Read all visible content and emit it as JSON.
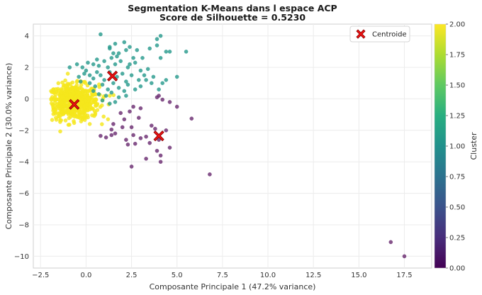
{
  "chart_data": {
    "type": "scatter",
    "title": [
      "Segmentation K-Means dans l espace ACP",
      "Score de Silhouette = 0.5230"
    ],
    "xlabel": "Composante Principale 1 (47.2% variance)",
    "ylabel": "Composante Principale 2 (30.0% variance)",
    "xlim": [
      -2.9,
      19.0
    ],
    "ylim": [
      -10.75,
      4.75
    ],
    "xticks": [
      -2.5,
      0.0,
      2.5,
      5.0,
      7.5,
      10.0,
      12.5,
      15.0,
      17.5
    ],
    "xtick_labels": [
      "−2.5",
      "0.0",
      "2.5",
      "5.0",
      "7.5",
      "10.0",
      "12.5",
      "15.0",
      "17.5"
    ],
    "yticks": [
      4,
      2,
      0,
      -2,
      -4,
      -6,
      -8,
      -10
    ],
    "ytick_labels": [
      "4",
      "2",
      "0",
      "−2",
      "−4",
      "−6",
      "−8",
      "−10"
    ],
    "grid": true,
    "legend": {
      "position": "top-right",
      "entries": [
        "Centroide"
      ]
    },
    "colorbar": {
      "label": "Cluster",
      "range": [
        0.0,
        2.0
      ],
      "ticks": [
        2.0,
        1.75,
        1.5,
        1.25,
        1.0,
        0.75,
        0.5,
        0.25,
        0.0
      ],
      "tick_labels": [
        "2.00",
        "1.75",
        "1.50",
        "1.25",
        "1.00",
        "0.75",
        "0.50",
        "0.25",
        "0.00"
      ]
    },
    "cluster_colors": {
      "0": "#6b2d72",
      "1": "#2a9b8e",
      "2": "#f5e61c"
    },
    "centroid_color": "#ee1111",
    "centroids": [
      {
        "cluster": 0,
        "x": 4.0,
        "y": -2.35
      },
      {
        "cluster": 1,
        "x": 1.45,
        "y": 1.45
      },
      {
        "cluster": 2,
        "x": -0.65,
        "y": -0.35
      }
    ],
    "series": [
      {
        "cluster": 0,
        "points": [
          [
            1.9,
            -0.9
          ],
          [
            2.4,
            -0.8
          ],
          [
            2.6,
            -0.5
          ],
          [
            2.1,
            -1.3
          ],
          [
            2.9,
            -1.2
          ],
          [
            3.0,
            -0.6
          ],
          [
            1.5,
            -1.6
          ],
          [
            2.0,
            -1.8
          ],
          [
            1.4,
            -1.95
          ],
          [
            2.5,
            -1.8
          ],
          [
            1.4,
            -2.3
          ],
          [
            1.1,
            -2.45
          ],
          [
            0.8,
            -2.35
          ],
          [
            1.6,
            -2.2
          ],
          [
            2.6,
            -2.3
          ],
          [
            3.0,
            -2.5
          ],
          [
            3.3,
            -2.4
          ],
          [
            3.6,
            -1.7
          ],
          [
            3.8,
            -1.9
          ],
          [
            4.0,
            -2.6
          ],
          [
            4.4,
            -2.0
          ],
          [
            3.5,
            -2.8
          ],
          [
            2.3,
            -2.9
          ],
          [
            2.2,
            -2.6
          ],
          [
            2.7,
            -2.85
          ],
          [
            3.3,
            -3.8
          ],
          [
            2.5,
            -4.3
          ],
          [
            3.9,
            -3.3
          ],
          [
            4.1,
            -3.6
          ],
          [
            4.1,
            -4.0
          ],
          [
            4.6,
            -3.1
          ],
          [
            3.9,
            0.1
          ],
          [
            4.0,
            0.2
          ],
          [
            4.2,
            -0.05
          ],
          [
            4.6,
            -0.2
          ],
          [
            5.0,
            -0.5
          ],
          [
            5.8,
            -1.25
          ],
          [
            6.8,
            -4.8
          ],
          [
            16.75,
            -9.1
          ],
          [
            17.5,
            -10.0
          ]
        ]
      },
      {
        "cluster": 1,
        "points": [
          [
            0.8,
            4.1
          ],
          [
            1.3,
            3.3
          ],
          [
            1.3,
            3.2
          ],
          [
            1.5,
            2.9
          ],
          [
            1.6,
            3.5
          ],
          [
            2.1,
            3.6
          ],
          [
            2.4,
            3.3
          ],
          [
            2.8,
            3.1
          ],
          [
            2.2,
            3.1
          ],
          [
            1.8,
            2.9
          ],
          [
            2.6,
            2.6
          ],
          [
            3.1,
            2.6
          ],
          [
            3.5,
            3.2
          ],
          [
            3.9,
            3.4
          ],
          [
            4.1,
            4.0
          ],
          [
            4.4,
            3.0
          ],
          [
            4.6,
            3.0
          ],
          [
            5.5,
            3.0
          ],
          [
            3.9,
            3.8
          ],
          [
            4.1,
            2.6
          ],
          [
            -0.9,
            2.0
          ],
          [
            -0.5,
            2.2
          ],
          [
            -0.2,
            2.0
          ],
          [
            0.1,
            2.3
          ],
          [
            0.4,
            2.2
          ],
          [
            0.7,
            2.1
          ],
          [
            1.0,
            2.4
          ],
          [
            1.2,
            2.0
          ],
          [
            1.6,
            2.2
          ],
          [
            1.9,
            2.4
          ],
          [
            2.3,
            2.0
          ],
          [
            2.7,
            2.3
          ],
          [
            3.0,
            1.8
          ],
          [
            3.4,
            1.9
          ],
          [
            3.7,
            1.4
          ],
          [
            -0.4,
            1.4
          ],
          [
            -0.1,
            1.6
          ],
          [
            0.2,
            1.5
          ],
          [
            0.4,
            1.3
          ],
          [
            0.6,
            1.7
          ],
          [
            0.8,
            1.5
          ],
          [
            1.0,
            1.2
          ],
          [
            1.3,
            1.7
          ],
          [
            1.7,
            1.4
          ],
          [
            2.0,
            1.6
          ],
          [
            2.2,
            1.1
          ],
          [
            2.5,
            1.5
          ],
          [
            2.9,
            1.2
          ],
          [
            3.2,
            1.5
          ],
          [
            3.6,
            1.0
          ],
          [
            4.2,
            1.0
          ],
          [
            4.4,
            1.2
          ],
          [
            5.0,
            1.4
          ],
          [
            0.2,
            1.0
          ],
          [
            0.5,
            0.8
          ],
          [
            0.9,
            0.9
          ],
          [
            1.2,
            0.6
          ],
          [
            1.5,
            1.0
          ],
          [
            1.8,
            0.7
          ],
          [
            2.1,
            0.5
          ],
          [
            2.3,
            0.9
          ],
          [
            2.7,
            0.6
          ],
          [
            3.0,
            0.8
          ],
          [
            0.7,
            0.3
          ],
          [
            1.1,
            0.2
          ],
          [
            1.4,
            0.4
          ],
          [
            1.8,
            0.1
          ],
          [
            2.2,
            0.2
          ],
          [
            0.9,
            -0.1
          ],
          [
            1.3,
            -0.3
          ],
          [
            1.6,
            -0.2
          ],
          [
            0.4,
            0.5
          ],
          [
            -0.3,
            1.1
          ],
          [
            0.0,
            1.8
          ],
          [
            1.7,
            2.7
          ],
          [
            2.4,
            2.2
          ],
          [
            3.3,
            1.2
          ],
          [
            4.0,
            0.6
          ],
          [
            0.6,
            2.5
          ],
          [
            1.4,
            2.6
          ]
        ]
      }
    ],
    "cluster2_cloud": {
      "center": [
        -0.7,
        -0.2
      ],
      "spread": [
        0.7,
        0.55
      ],
      "count": 600,
      "xmin": -1.95,
      "xmax": 1.6,
      "ymin": -2.35,
      "ymax": 1.7,
      "extra": [
        [
          0.9,
          -0.1
        ],
        [
          0.5,
          -1.0
        ],
        [
          0.2,
          -1.6
        ],
        [
          -1.7,
          0.1
        ],
        [
          -1.4,
          0.4
        ],
        [
          1.3,
          0.2
        ]
      ]
    }
  }
}
